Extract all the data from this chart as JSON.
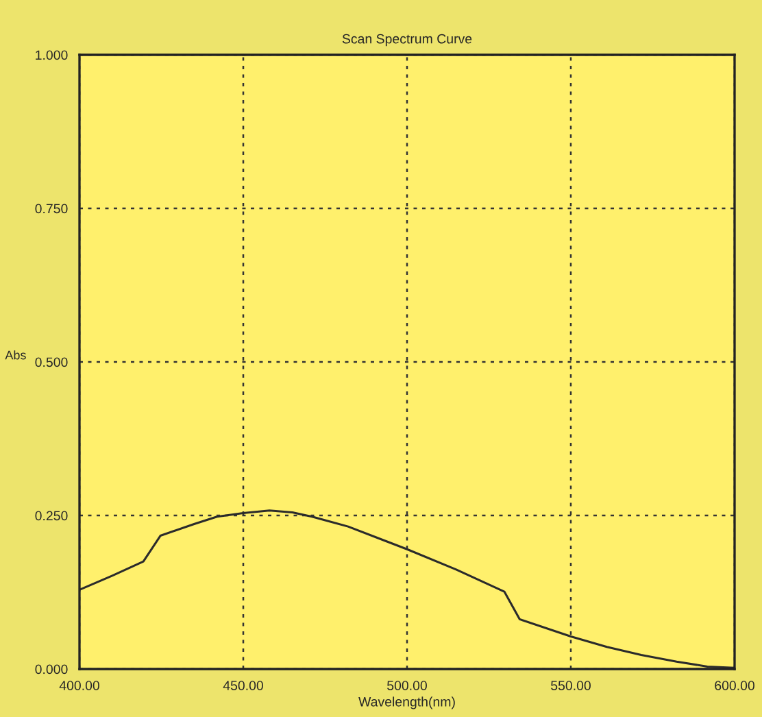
{
  "chart_data": {
    "type": "line",
    "title": "Scan Spectrum Curve",
    "xlabel": "Wavelength(nm)",
    "ylabel": "Abs",
    "x": [
      400,
      410,
      419.5,
      424.7,
      435,
      442,
      450,
      458,
      465,
      471,
      482,
      491.7,
      500,
      515,
      529.7,
      534.4,
      550,
      561,
      571.5,
      582.3,
      591.7,
      600
    ],
    "series": [
      {
        "color": "#2b2b2b",
        "values": [
          0.129,
          0.152,
          0.175,
          0.217,
          0.236,
          0.248,
          0.254,
          0.258,
          0.255,
          0.248,
          0.232,
          0.212,
          0.195,
          0.162,
          0.126,
          0.081,
          0.053,
          0.036,
          0.023,
          0.012,
          0.004,
          0.002
        ]
      }
    ],
    "xlim": [
      400,
      600
    ],
    "ylim": [
      0,
      1
    ],
    "xticks": [
      {
        "value": 400,
        "label": "400.00"
      },
      {
        "value": 450,
        "label": "450.00"
      },
      {
        "value": 500,
        "label": "500.00"
      },
      {
        "value": 550,
        "label": "550.00"
      },
      {
        "value": 600,
        "label": "600.00"
      }
    ],
    "yticks": [
      {
        "value": 0,
        "label": "0.000"
      },
      {
        "value": 0.25,
        "label": "0.250"
      },
      {
        "value": 0.5,
        "label": "0.500"
      },
      {
        "value": 0.75,
        "label": "0.750"
      },
      {
        "value": 1,
        "label": "1.000"
      }
    ],
    "grid": true,
    "line_style": "solid"
  }
}
